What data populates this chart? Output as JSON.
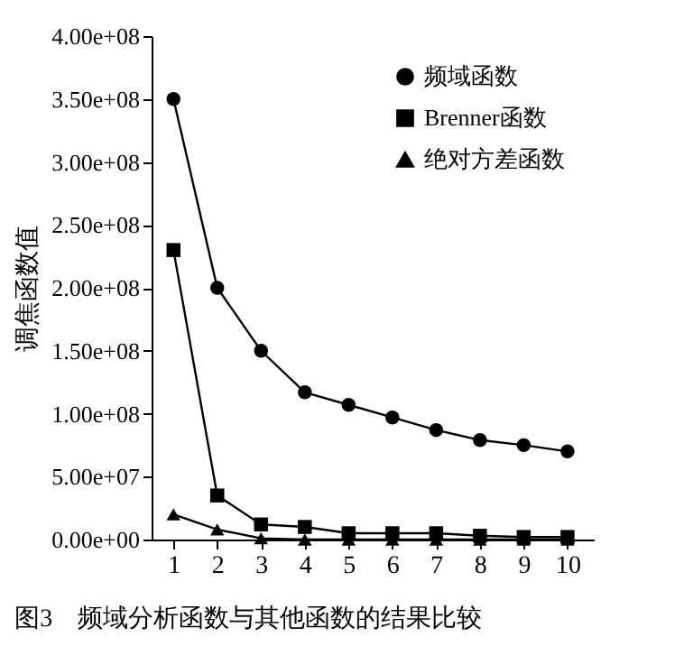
{
  "chart_data": {
    "type": "line",
    "ylabel": "调焦函数值",
    "annotations": [
      "图3　频域分析函数与其他函数的结果比较"
    ],
    "x": [
      1,
      2,
      3,
      4,
      5,
      6,
      7,
      8,
      9,
      10
    ],
    "xlim": [
      0.5,
      10.6
    ],
    "xticks": [
      1,
      2,
      3,
      4,
      5,
      6,
      7,
      8,
      9,
      10
    ],
    "ylim": [
      0,
      400000000
    ],
    "yticks": [
      {
        "value": 0,
        "label": "0.00e+00"
      },
      {
        "value": 50000000,
        "label": "5.00e+07"
      },
      {
        "value": 100000000,
        "label": "1.00e+08"
      },
      {
        "value": 150000000,
        "label": "1.50e+08"
      },
      {
        "value": 200000000,
        "label": "2.00e+08"
      },
      {
        "value": 250000000,
        "label": "2.50e+08"
      },
      {
        "value": 300000000,
        "label": "3.00e+08"
      },
      {
        "value": 350000000,
        "label": "3.50e+08"
      },
      {
        "value": 400000000,
        "label": "4.00e+08"
      }
    ],
    "series": [
      {
        "name": "频域函数",
        "color": "#000000",
        "marker": "circle",
        "values": [
          350000000,
          200000000,
          150000000,
          117000000,
          107000000,
          97000000,
          87000000,
          79000000,
          75000000,
          70000000
        ]
      },
      {
        "name": "Brenner函数",
        "color": "#000000",
        "marker": "square",
        "values": [
          230000000,
          35000000,
          12000000,
          10000000,
          5000000,
          5000000,
          5000000,
          3000000,
          2000000,
          2000000
        ]
      },
      {
        "name": "绝对方差函数",
        "color": "#000000",
        "marker": "triangle",
        "values": [
          20000000,
          8000000,
          1000000,
          0,
          0,
          0,
          0,
          0,
          0,
          0
        ]
      }
    ],
    "grid": false,
    "legend": "top right",
    "line_style": "solid"
  }
}
